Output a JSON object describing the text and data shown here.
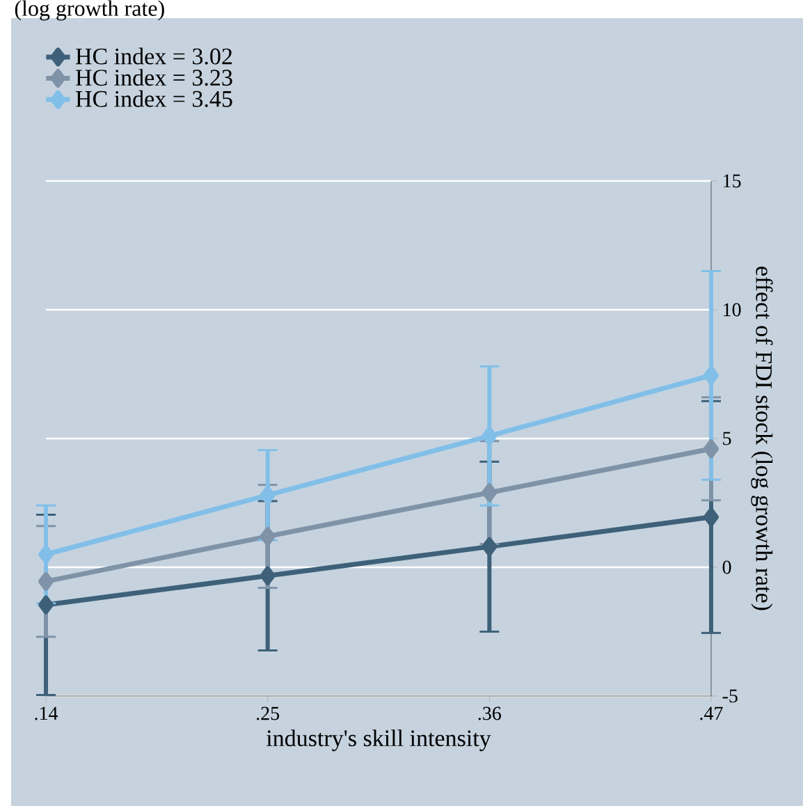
{
  "chart_data": {
    "type": "line",
    "title": "(log growth rate)",
    "xlabel": "industry's skill intensity",
    "ylabel": "effect of FDI stock (log growth rate)",
    "x": [
      0.14,
      0.25,
      0.36,
      0.47
    ],
    "series": [
      {
        "name": "HC index = 3.02",
        "color": "#3e6179",
        "values": [
          -1.46,
          -0.33,
          0.8,
          1.95
        ],
        "errors": [
          3.5,
          2.9,
          3.3,
          4.5
        ]
      },
      {
        "name": "HC index = 3.23",
        "color": "#7f93a8",
        "values": [
          -0.55,
          1.2,
          2.9,
          4.6
        ],
        "errors": [
          2.15,
          2.0,
          2.0,
          2.0
        ]
      },
      {
        "name": "HC index = 3.45",
        "color": "#82bfe8",
        "values": [
          0.5,
          2.8,
          5.1,
          7.45
        ],
        "errors": [
          1.9,
          1.75,
          2.7,
          4.05
        ]
      }
    ],
    "xlim": [
      0.14,
      0.47
    ],
    "xticks": [
      {
        "value": 0.14,
        "label": ".14"
      },
      {
        "value": 0.25,
        "label": ".25"
      },
      {
        "value": 0.36,
        "label": ".36"
      },
      {
        "value": 0.47,
        "label": ".47"
      }
    ],
    "ylim": [
      -5,
      15
    ],
    "yticks": [
      -5,
      0,
      5,
      10,
      15
    ],
    "grid": "y",
    "legend": "top left",
    "marker": "diamond",
    "line_style": "solid"
  }
}
